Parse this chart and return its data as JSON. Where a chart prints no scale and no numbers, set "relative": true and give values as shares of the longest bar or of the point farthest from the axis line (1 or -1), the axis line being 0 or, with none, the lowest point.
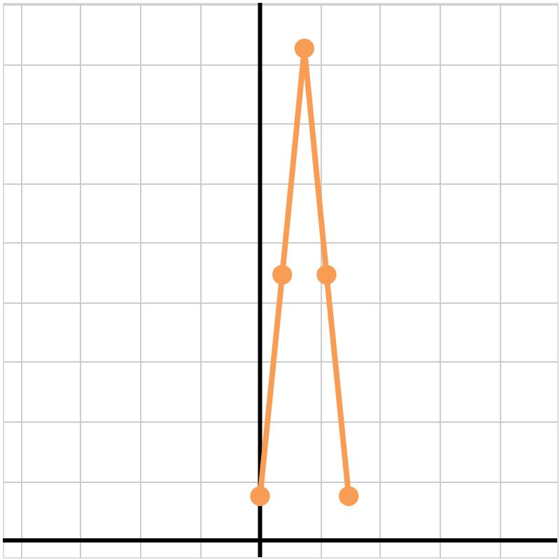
{
  "chart_data": {
    "type": "line",
    "relative": true,
    "grid": true,
    "tick_labels": false,
    "categories": [
      null,
      null,
      null,
      null,
      null
    ],
    "series": [
      {
        "color": "#f99d55",
        "values": [
          0.09,
          0.54,
          1,
          0.54,
          0.09
        ],
        "marker": "circle"
      }
    ]
  }
}
